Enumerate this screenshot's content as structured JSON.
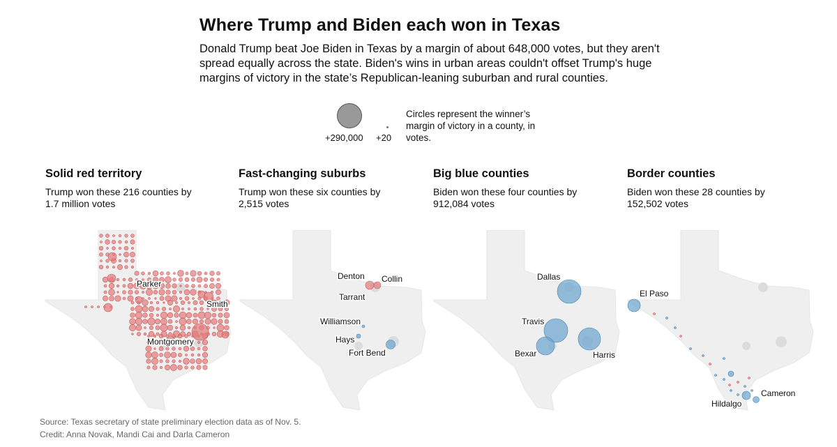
{
  "title": "Where Trump and Biden each won in Texas",
  "intro": "Donald Trump beat Joe Biden in Texas by a margin of about 648,000 votes, but they aren't spread equally across the state. Biden's wins in urban areas couldn't offset Trump's huge margins of victory in the state’s Republican-leaning suburban and rural counties.",
  "legend": {
    "big_label": "+290,000",
    "small_label": "+20",
    "note": "Circles represent the winner’s margin of victory in a county, in votes."
  },
  "colors": {
    "trump": "#e27b7b",
    "biden": "#6aa3cf",
    "map_fill": "#efefef",
    "urban": "#dcdcdc"
  },
  "panels": [
    {
      "heading": "Solid red territory",
      "description": "Trump won these 216 counties by 1.7 million votes",
      "labels": [
        "Parker",
        "Smith",
        "Montgomery"
      ]
    },
    {
      "heading": "Fast-changing suburbs",
      "description": "Trump won these six counties by 2,515 votes",
      "labels": [
        "Denton",
        "Collin",
        "Tarrant",
        "Williamson",
        "Hays",
        "Fort Bend"
      ]
    },
    {
      "heading": "Big blue counties",
      "description": "Biden won these four counties by 912,084 votes",
      "labels": [
        "Dallas",
        "Travis",
        "Bexar",
        "Harris"
      ]
    },
    {
      "heading": "Border counties",
      "description": "Biden won these 28 counties by 152,502 votes",
      "labels": [
        "El Paso",
        "Cameron",
        "Hildalgo"
      ]
    }
  ],
  "footer": {
    "source": "Source: Texas secretary of state preliminary election data as of Nov. 5.",
    "credit": "Credit: Anna Novak, Mandi Cai and Darla Cameron"
  }
}
